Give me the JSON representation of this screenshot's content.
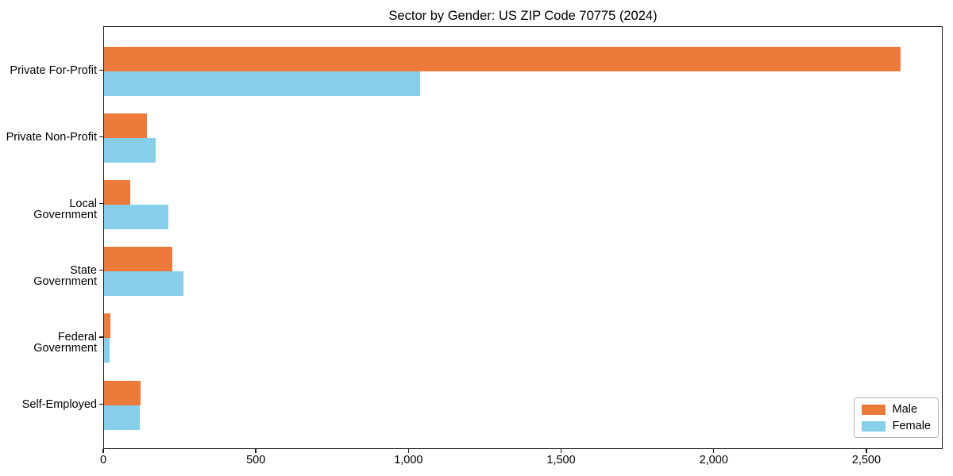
{
  "title": "Sector by Gender: US ZIP Code 70775 (2024)",
  "chart_data": {
    "type": "bar",
    "orientation": "horizontal",
    "title": "Sector by Gender: US ZIP Code 70775 (2024)",
    "categories": [
      "Private For-Profit",
      "Private Non-Profit",
      "Local Government",
      "State Government",
      "Federal Government",
      "Self-Employed"
    ],
    "series": [
      {
        "name": "Male",
        "color": "#EB7A3B",
        "values": [
          2610,
          140,
          85,
          225,
          20,
          120
        ]
      },
      {
        "name": "Female",
        "color": "#87CEEB",
        "values": [
          1035,
          170,
          210,
          260,
          18,
          118
        ]
      }
    ],
    "xlabel": "",
    "ylabel": "",
    "xlim": [
      0,
      2750
    ],
    "x_ticks": [
      {
        "value": 0,
        "label": "0"
      },
      {
        "value": 500,
        "label": "500"
      },
      {
        "value": 1000,
        "label": "1,000"
      },
      {
        "value": 1500,
        "label": "1,500"
      },
      {
        "value": 2000,
        "label": "2,000"
      },
      {
        "value": 2500,
        "label": "2,500"
      }
    ],
    "legend_position": "lower right",
    "grid": false
  }
}
